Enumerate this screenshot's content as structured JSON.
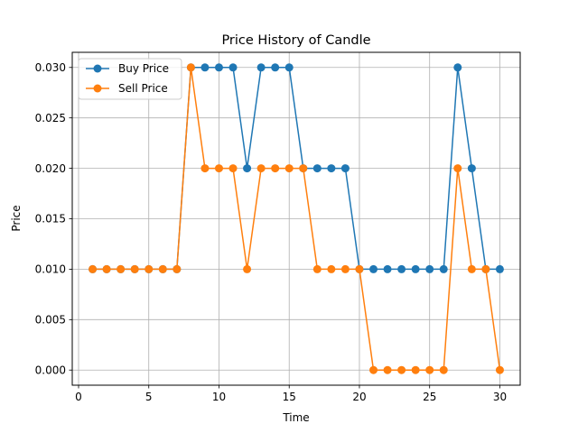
{
  "chart_data": {
    "type": "line",
    "title": "Price History of Candle",
    "xlabel": "Time",
    "ylabel": "Price",
    "xlim": [
      -0.45,
      31.45
    ],
    "ylim": [
      -0.0015,
      0.0315
    ],
    "xticks": [
      0,
      5,
      10,
      15,
      20,
      25,
      30
    ],
    "xtick_labels": [
      "0",
      "5",
      "10",
      "15",
      "20",
      "25",
      "30"
    ],
    "yticks": [
      0.0,
      0.005,
      0.01,
      0.015,
      0.02,
      0.025,
      0.03
    ],
    "ytick_labels": [
      "0.000",
      "0.005",
      "0.010",
      "0.015",
      "0.020",
      "0.025",
      "0.030"
    ],
    "grid": true,
    "legend_position": "top-left",
    "x": [
      1,
      2,
      3,
      4,
      5,
      6,
      7,
      8,
      9,
      10,
      11,
      12,
      13,
      14,
      15,
      16,
      17,
      18,
      19,
      20,
      21,
      22,
      23,
      24,
      25,
      26,
      27,
      28,
      29,
      30
    ],
    "series": [
      {
        "name": "Buy Price",
        "color": "#1f77b4",
        "marker": "circle",
        "values": [
          0.01,
          0.01,
          0.01,
          0.01,
          0.01,
          0.01,
          0.01,
          0.03,
          0.03,
          0.03,
          0.03,
          0.02,
          0.03,
          0.03,
          0.03,
          0.02,
          0.02,
          0.02,
          0.02,
          0.01,
          0.01,
          0.01,
          0.01,
          0.01,
          0.01,
          0.01,
          0.03,
          0.02,
          0.01,
          0.01
        ]
      },
      {
        "name": "Sell Price",
        "color": "#ff7f0e",
        "marker": "circle",
        "values": [
          0.01,
          0.01,
          0.01,
          0.01,
          0.01,
          0.01,
          0.01,
          0.03,
          0.02,
          0.02,
          0.02,
          0.01,
          0.02,
          0.02,
          0.02,
          0.02,
          0.01,
          0.01,
          0.01,
          0.01,
          0.0,
          0.0,
          0.0,
          0.0,
          0.0,
          0.0,
          0.02,
          0.01,
          0.01,
          0.0
        ]
      }
    ]
  }
}
